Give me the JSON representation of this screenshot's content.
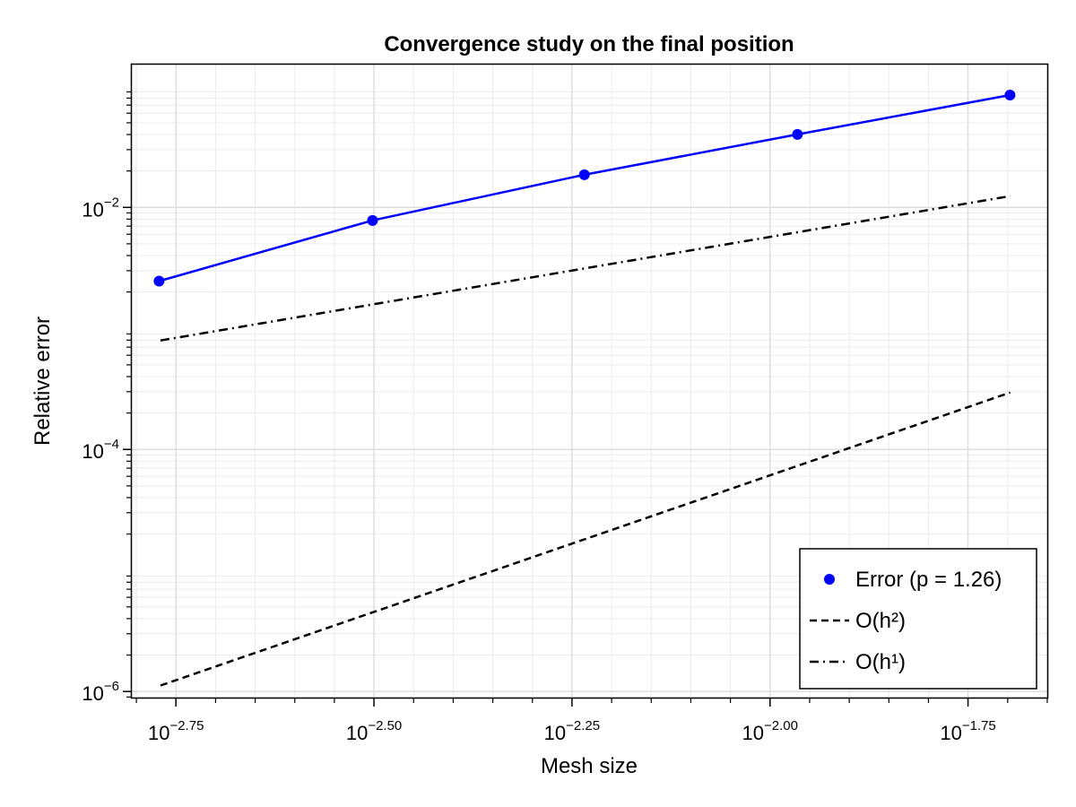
{
  "chart_data": {
    "type": "line",
    "title": "Convergence study on the final position",
    "xlabel": "Mesh size",
    "ylabel": "Relative error",
    "x_scale": "log10",
    "y_scale": "log10",
    "xlim": [
      0.001564,
      0.02239
    ],
    "ylim": [
      8.9e-07,
      0.1514
    ],
    "grid": true,
    "legend_position": "bottom-right",
    "x_ticks": [
      {
        "base": "10",
        "exp": "−2.75",
        "value": 0.001778
      },
      {
        "base": "10",
        "exp": "−2.50",
        "value": 0.003162
      },
      {
        "base": "10",
        "exp": "−2.25",
        "value": 0.005623
      },
      {
        "base": "10",
        "exp": "−2.00",
        "value": 0.01
      },
      {
        "base": "10",
        "exp": "−1.75",
        "value": 0.01778
      }
    ],
    "y_ticks": [
      {
        "base": "10",
        "exp": "−2",
        "value": 0.01
      },
      {
        "base": "10",
        "exp": "−4",
        "value": 0.0001
      },
      {
        "base": "10",
        "exp": "−6",
        "value": 1e-06
      }
    ],
    "series": [
      {
        "name": "Error (p = 1.26)",
        "color": "#0000ff",
        "style": "solid-markers",
        "x": [
          0.001693,
          0.003149,
          0.005829,
          0.01083,
          0.02009
        ],
        "y": [
          0.00246,
          0.0078,
          0.0186,
          0.0401,
          0.0848
        ]
      },
      {
        "name": "O(h²)",
        "color": "#000000",
        "style": "dashed",
        "x": [
          0.0017,
          0.0201
        ],
        "y": [
          1.12e-06,
          0.000295
        ]
      },
      {
        "name": "O(h¹)",
        "color": "#000000",
        "style": "dashdot",
        "x": [
          0.0017,
          0.0201
        ],
        "y": [
          0.000795,
          0.0124
        ]
      }
    ]
  }
}
